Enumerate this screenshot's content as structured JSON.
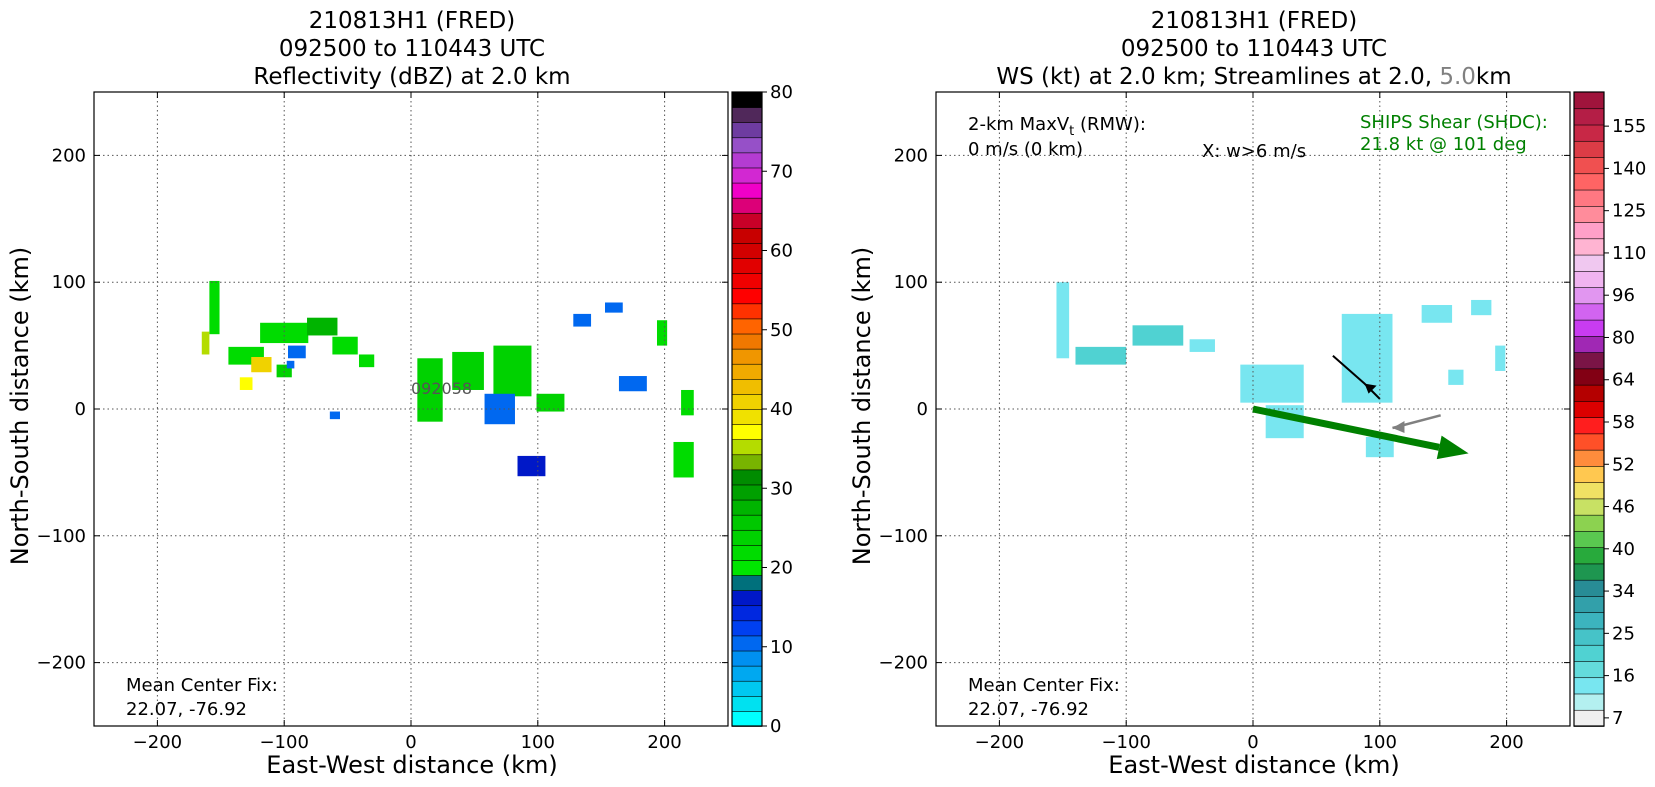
{
  "chart_data": [
    {
      "type": "heatmap",
      "title_lines": [
        "210813H1 (FRED)",
        "092500 to 110443 UTC",
        "Reflectivity (dBZ) at 2.0 km"
      ],
      "xlabel": "East-West distance (km)",
      "ylabel": "North-South distance (km)",
      "xlim": [
        -250,
        250
      ],
      "ylim": [
        -250,
        250
      ],
      "xticks": [
        -200,
        -100,
        0,
        100,
        200
      ],
      "yticks": [
        -200,
        -100,
        0,
        100,
        200
      ],
      "grid": true,
      "annotation": [
        "Mean Center Fix:",
        "22.07, -76.92"
      ],
      "center_label": "092058",
      "colorbar": {
        "ticks": [
          0,
          10,
          20,
          30,
          40,
          50,
          60,
          70,
          80
        ],
        "colors": [
          "#00ffff",
          "#00e1f0",
          "#00c8f0",
          "#00a8f0",
          "#0090f0",
          "#0068f0",
          "#0040f0",
          "#0028e0",
          "#0018c8",
          "#00707c",
          "#00e600",
          "#00dc00",
          "#00d200",
          "#00c800",
          "#00b400",
          "#00a000",
          "#008c00",
          "#78b400",
          "#b4dc00",
          "#ffff00",
          "#f0e100",
          "#f0d200",
          "#f0be00",
          "#f0aa00",
          "#f09600",
          "#f07800",
          "#ff6400",
          "#ff3200",
          "#ff0000",
          "#f00000",
          "#e10000",
          "#d20000",
          "#c80000",
          "#c80028",
          "#dc0078",
          "#f000c8",
          "#d228d2",
          "#b43cd2",
          "#9650c8",
          "#6e3ca0",
          "#50285a",
          "#000000"
        ]
      },
      "cells": [
        {
          "x": -155,
          "y": 80,
          "w": 8,
          "h": 42,
          "value": 22
        },
        {
          "x": -162,
          "y": 52,
          "w": 6,
          "h": 18,
          "value": 36
        },
        {
          "x": -130,
          "y": 42,
          "w": 28,
          "h": 14,
          "value": 22
        },
        {
          "x": -118,
          "y": 35,
          "w": 16,
          "h": 12,
          "value": 40
        },
        {
          "x": -100,
          "y": 60,
          "w": 38,
          "h": 16,
          "value": 22
        },
        {
          "x": -70,
          "y": 65,
          "w": 24,
          "h": 14,
          "value": 28
        },
        {
          "x": -52,
          "y": 50,
          "w": 20,
          "h": 14,
          "value": 22
        },
        {
          "x": -90,
          "y": 45,
          "w": 14,
          "h": 10,
          "value": 10
        },
        {
          "x": -35,
          "y": 38,
          "w": 12,
          "h": 10,
          "value": 22
        },
        {
          "x": -130,
          "y": 20,
          "w": 10,
          "h": 10,
          "value": 38
        },
        {
          "x": -100,
          "y": 30,
          "w": 12,
          "h": 10,
          "value": 24
        },
        {
          "x": 15,
          "y": 15,
          "w": 20,
          "h": 50,
          "value": 24
        },
        {
          "x": 45,
          "y": 30,
          "w": 25,
          "h": 30,
          "value": 24
        },
        {
          "x": 80,
          "y": 30,
          "w": 30,
          "h": 40,
          "value": 24
        },
        {
          "x": 70,
          "y": 0,
          "w": 24,
          "h": 24,
          "value": 10
        },
        {
          "x": 110,
          "y": 5,
          "w": 22,
          "h": 14,
          "value": 24
        },
        {
          "x": 95,
          "y": -45,
          "w": 22,
          "h": 16,
          "value": 16
        },
        {
          "x": 135,
          "y": 70,
          "w": 14,
          "h": 10,
          "value": 10
        },
        {
          "x": 160,
          "y": 80,
          "w": 14,
          "h": 8,
          "value": 10
        },
        {
          "x": 175,
          "y": 20,
          "w": 22,
          "h": 12,
          "value": 10
        },
        {
          "x": 198,
          "y": 60,
          "w": 8,
          "h": 20,
          "value": 22
        },
        {
          "x": 218,
          "y": 5,
          "w": 10,
          "h": 20,
          "value": 22
        },
        {
          "x": 215,
          "y": -40,
          "w": 16,
          "h": 28,
          "value": 22
        },
        {
          "x": -60,
          "y": -5,
          "w": 8,
          "h": 6,
          "value": 10
        },
        {
          "x": -95,
          "y": 35,
          "w": 6,
          "h": 6,
          "value": 10
        }
      ]
    },
    {
      "type": "heatmap",
      "title_lines": [
        "210813H1 (FRED)",
        "092500 to 110443 UTC",
        "WS (kt) at 2.0 km; Streamlines at 2.0, ",
        "5.0",
        "km"
      ],
      "xlabel": "East-West distance (km)",
      "ylabel": "North-South distance (km)",
      "xlim": [
        -250,
        250
      ],
      "ylim": [
        -250,
        250
      ],
      "xticks": [
        -200,
        -100,
        0,
        100,
        200
      ],
      "yticks": [
        -200,
        -100,
        0,
        100,
        200
      ],
      "grid": true,
      "annotation_vt": [
        "2-km MaxV",
        "t",
        " (RMW):",
        "0 m/s (0 km)"
      ],
      "annotation_w": "X: w>6 m/s",
      "shear_text": [
        "SHIPS Shear (SHDC):",
        "21.8 kt @ 101 deg"
      ],
      "annotation": [
        "Mean Center Fix:",
        "22.07, -76.92"
      ],
      "shear_vector": {
        "x0": 0,
        "y0": 0,
        "x1": 170,
        "y1": -35
      },
      "streamline_2km": [
        [
          63,
          42
        ],
        [
          88,
          20
        ],
        [
          100,
          8
        ]
      ],
      "streamline_5km": [
        [
          148,
          -5
        ],
        [
          110,
          -15
        ]
      ],
      "colorbar": {
        "ticks": [
          7,
          16,
          25,
          34,
          40,
          46,
          52,
          58,
          64,
          80,
          96,
          110,
          125,
          140,
          155
        ],
        "colors": [
          "#f0f0f0",
          "#b4f0f0",
          "#78e6f0",
          "#64dcdc",
          "#50d2d2",
          "#46c3c8",
          "#3cb4be",
          "#32a0aa",
          "#288c96",
          "#1e9650",
          "#28aa3c",
          "#5ac850",
          "#8cd250",
          "#c8e164",
          "#f0e164",
          "#ffc850",
          "#ff8c3c",
          "#ff5028",
          "#ff1e1e",
          "#dc0000",
          "#b40000",
          "#820014",
          "#7a1446",
          "#a028b4",
          "#c83cf0",
          "#d264f0",
          "#e196f0",
          "#f0b4f0",
          "#f0c8f0",
          "#ffb4d2",
          "#ffa0c8",
          "#ff8c9b",
          "#ff7882",
          "#ff6464",
          "#f05050",
          "#dc3c46",
          "#c82846",
          "#b41e46",
          "#a0143c"
        ]
      },
      "cells": [
        {
          "x": -150,
          "y": 70,
          "w": 10,
          "h": 60,
          "value": 16
        },
        {
          "x": -120,
          "y": 42,
          "w": 40,
          "h": 14,
          "value": 25
        },
        {
          "x": -75,
          "y": 58,
          "w": 40,
          "h": 16,
          "value": 25
        },
        {
          "x": -40,
          "y": 50,
          "w": 20,
          "h": 10,
          "value": 16
        },
        {
          "x": 15,
          "y": 20,
          "w": 50,
          "h": 30,
          "value": 16
        },
        {
          "x": 25,
          "y": -10,
          "w": 30,
          "h": 26,
          "value": 16
        },
        {
          "x": 90,
          "y": 40,
          "w": 40,
          "h": 70,
          "value": 16
        },
        {
          "x": 100,
          "y": -30,
          "w": 22,
          "h": 16,
          "value": 16
        },
        {
          "x": 145,
          "y": 75,
          "w": 24,
          "h": 14,
          "value": 16
        },
        {
          "x": 180,
          "y": 80,
          "w": 16,
          "h": 12,
          "value": 16
        },
        {
          "x": 195,
          "y": 40,
          "w": 8,
          "h": 20,
          "value": 16
        },
        {
          "x": 160,
          "y": 25,
          "w": 12,
          "h": 12,
          "value": 16
        }
      ]
    }
  ]
}
